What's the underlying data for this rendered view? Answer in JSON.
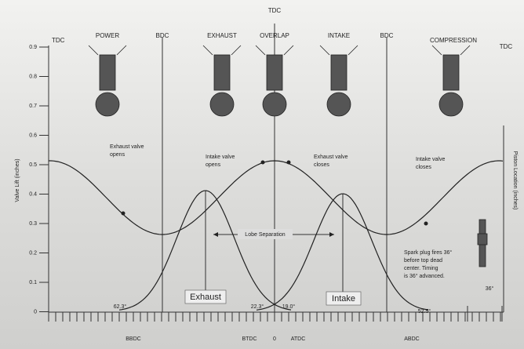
{
  "header": {
    "tdc_top": "TDC"
  },
  "strokes": {
    "tdc_left": "TDC",
    "power": "POWER",
    "bdc_1": "BDC",
    "exhaust": "EXHAUST",
    "overlap": "OVERLAP",
    "intake": "INTAKE",
    "bdc_2": "BDC",
    "compression": "COMPRESSION",
    "tdc_right": "TDC"
  },
  "axes": {
    "left_title": "Valve Lift (inches)",
    "right_title": "Piston Location (inches)",
    "left_ticks": [
      "0.9",
      "0.8",
      "0.7",
      "0.6",
      "0.5",
      "0.4",
      "0.3",
      "0.2",
      "0.1",
      "0"
    ],
    "bottom": [
      "BBDC",
      "BTDC",
      "0",
      "ATDC",
      "ABDC"
    ]
  },
  "annotations": {
    "exhaust_opens": [
      "Exhaust valve",
      "opens"
    ],
    "intake_opens": [
      "Intake valve",
      "opens"
    ],
    "exhaust_closes": [
      "Exhaust valve",
      "closes"
    ],
    "intake_closes": [
      "Intake valve",
      "closes"
    ],
    "lobe_separation": "Lobe Separation",
    "exhaust": "Exhaust",
    "intake": "Intake",
    "spark": [
      "Spark plug fires 36°",
      "before top dead",
      "center. Timing",
      "is 36° advanced."
    ],
    "advance": "36°",
    "angles": [
      "62.3°",
      "22.3°",
      "19.0°",
      "52.5°"
    ]
  }
}
